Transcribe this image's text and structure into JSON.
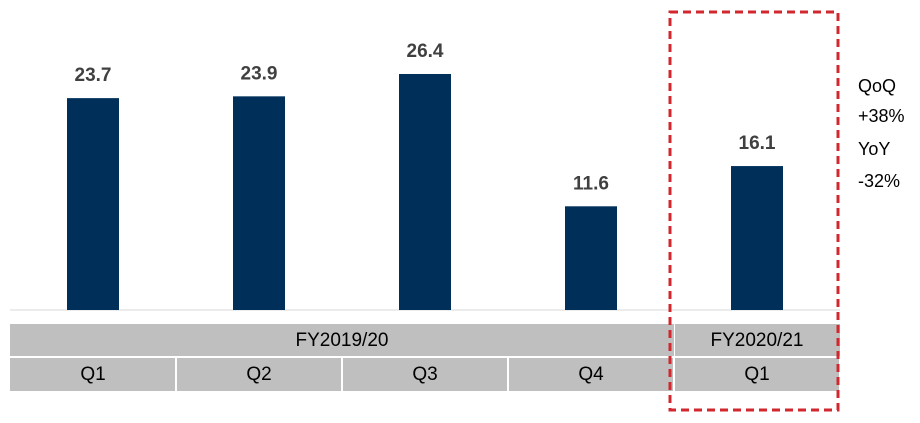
{
  "chart_data": {
    "type": "bar",
    "categories": [
      "Q1",
      "Q2",
      "Q3",
      "Q4",
      "Q1"
    ],
    "values": [
      23.7,
      23.9,
      26.4,
      11.6,
      16.1
    ],
    "color": "#00305a",
    "groups": [
      {
        "label": "FY2019/20",
        "span": 4
      },
      {
        "label": "FY2020/21",
        "span": 1
      }
    ],
    "annotations": [
      "QoQ",
      "+38%",
      "YoY",
      "-32%"
    ]
  }
}
